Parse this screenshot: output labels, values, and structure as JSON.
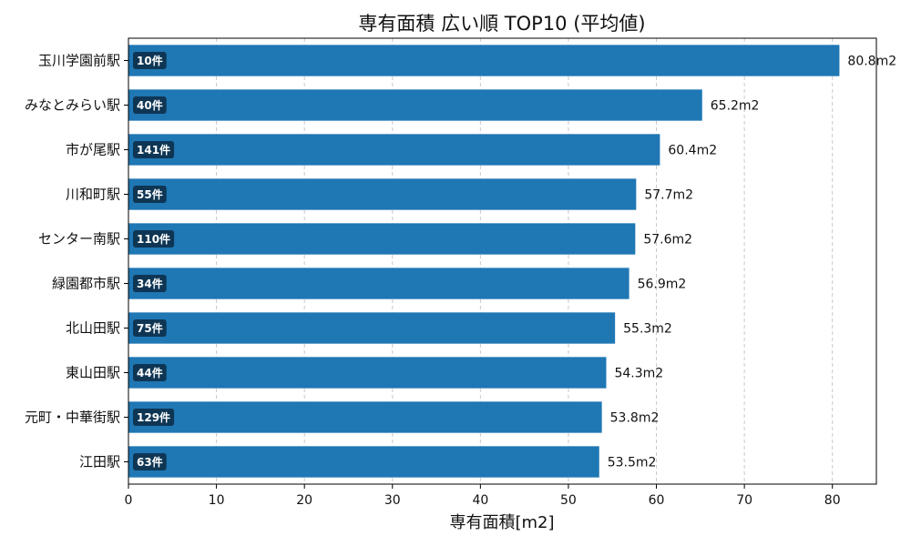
{
  "chart_data": {
    "type": "bar",
    "orientation": "horizontal",
    "title": "専有面積 広い順 TOP10 (平均値)",
    "xlabel": "専有面積[m2]",
    "ylabel": "",
    "xlim": [
      0,
      85
    ],
    "xticks": [
      0,
      10,
      20,
      30,
      40,
      50,
      60,
      70,
      80
    ],
    "grid": "x-dashed",
    "bar_color": "#1f77b4",
    "badge_color": "#0e3654",
    "categories": [
      "玉川学園前駅",
      "みなとみらい駅",
      "市が尾駅",
      "川和町駅",
      "センター南駅",
      "緑園都市駅",
      "北山田駅",
      "東山田駅",
      "元町・中華街駅",
      "江田駅"
    ],
    "values": [
      80.8,
      65.2,
      60.4,
      57.7,
      57.6,
      56.9,
      55.3,
      54.3,
      53.8,
      53.5
    ],
    "value_labels": [
      "80.8m2",
      "65.2m2",
      "60.4m2",
      "57.7m2",
      "57.6m2",
      "56.9m2",
      "55.3m2",
      "54.3m2",
      "53.8m2",
      "53.5m2"
    ],
    "count_labels": [
      "10件",
      "40件",
      "141件",
      "55件",
      "110件",
      "34件",
      "75件",
      "44件",
      "129件",
      "63件"
    ]
  }
}
